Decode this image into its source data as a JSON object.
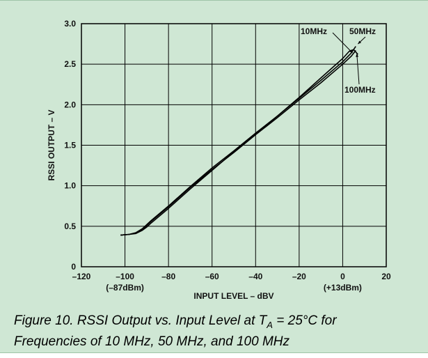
{
  "caption": {
    "prefix": "Figure 10.  RSSI Output vs. Input Level at T",
    "subscript": "A",
    "suffix": " = 25°C for",
    "line2": "Frequencies of 10 MHz, 50 MHz, and 100 MHz"
  },
  "chart_data": {
    "type": "line",
    "title": "",
    "xlabel": "INPUT LEVEL – dBV",
    "ylabel": "RSSI OUTPUT – V",
    "xlim": [
      -120,
      20
    ],
    "ylim": [
      0,
      3.0
    ],
    "grid": true,
    "x_ticks": [
      {
        "value": -120,
        "label": "–120"
      },
      {
        "value": -100,
        "label": "–100"
      },
      {
        "value": -80,
        "label": "–80"
      },
      {
        "value": -60,
        "label": "–60"
      },
      {
        "value": -40,
        "label": "–40"
      },
      {
        "value": -20,
        "label": "–20"
      },
      {
        "value": 0,
        "label": "0"
      },
      {
        "value": 20,
        "label": "20"
      }
    ],
    "x_sub_labels": [
      {
        "value": -100,
        "label": "(–87dBm)"
      },
      {
        "value": 0,
        "label": "(+13dBm)"
      }
    ],
    "y_ticks": [
      {
        "value": 0,
        "label": "0"
      },
      {
        "value": 0.5,
        "label": "0.5"
      },
      {
        "value": 1.0,
        "label": "1.0"
      },
      {
        "value": 1.5,
        "label": "1.5"
      },
      {
        "value": 2.0,
        "label": "2.0"
      },
      {
        "value": 2.5,
        "label": "2.5"
      },
      {
        "value": 3.0,
        "label": "3.0"
      }
    ],
    "series": [
      {
        "name": "10MHz",
        "x": [
          -102,
          -98,
          -95,
          -92,
          -90,
          -88,
          -80,
          -70,
          -60,
          -50,
          -40,
          -30,
          -20,
          -10,
          0,
          4,
          6
        ],
        "y": [
          0.39,
          0.4,
          0.42,
          0.46,
          0.51,
          0.56,
          0.74,
          0.98,
          1.2,
          1.41,
          1.63,
          1.84,
          2.06,
          2.27,
          2.5,
          2.6,
          2.67
        ]
      },
      {
        "name": "50MHz",
        "x": [
          -102,
          -98,
          -95,
          -92,
          -90,
          -88,
          -80,
          -70,
          -60,
          -50,
          -40,
          -30,
          -20,
          -10,
          0,
          4,
          6
        ],
        "y": [
          0.39,
          0.4,
          0.42,
          0.47,
          0.52,
          0.57,
          0.75,
          0.99,
          1.22,
          1.43,
          1.65,
          1.86,
          2.08,
          2.3,
          2.53,
          2.64,
          2.72
        ]
      },
      {
        "name": "100MHz",
        "x": [
          -102,
          -98,
          -95,
          -92,
          -90,
          -88,
          -80,
          -70,
          -60,
          -50,
          -40,
          -30,
          -20,
          -10,
          0,
          3,
          5,
          7
        ],
        "y": [
          0.39,
          0.4,
          0.41,
          0.45,
          0.49,
          0.54,
          0.72,
          0.96,
          1.19,
          1.42,
          1.64,
          1.86,
          2.09,
          2.33,
          2.57,
          2.66,
          2.68,
          2.62
        ]
      }
    ],
    "annotations": [
      {
        "text": "10MHz",
        "points_to": {
          "x": 4.5,
          "y": 2.64
        }
      },
      {
        "text": "50MHz",
        "points_to": {
          "x": 7.0,
          "y": 2.75
        }
      },
      {
        "text": "100MHz",
        "points_to": {
          "x": 6.5,
          "y": 2.63
        }
      }
    ]
  }
}
